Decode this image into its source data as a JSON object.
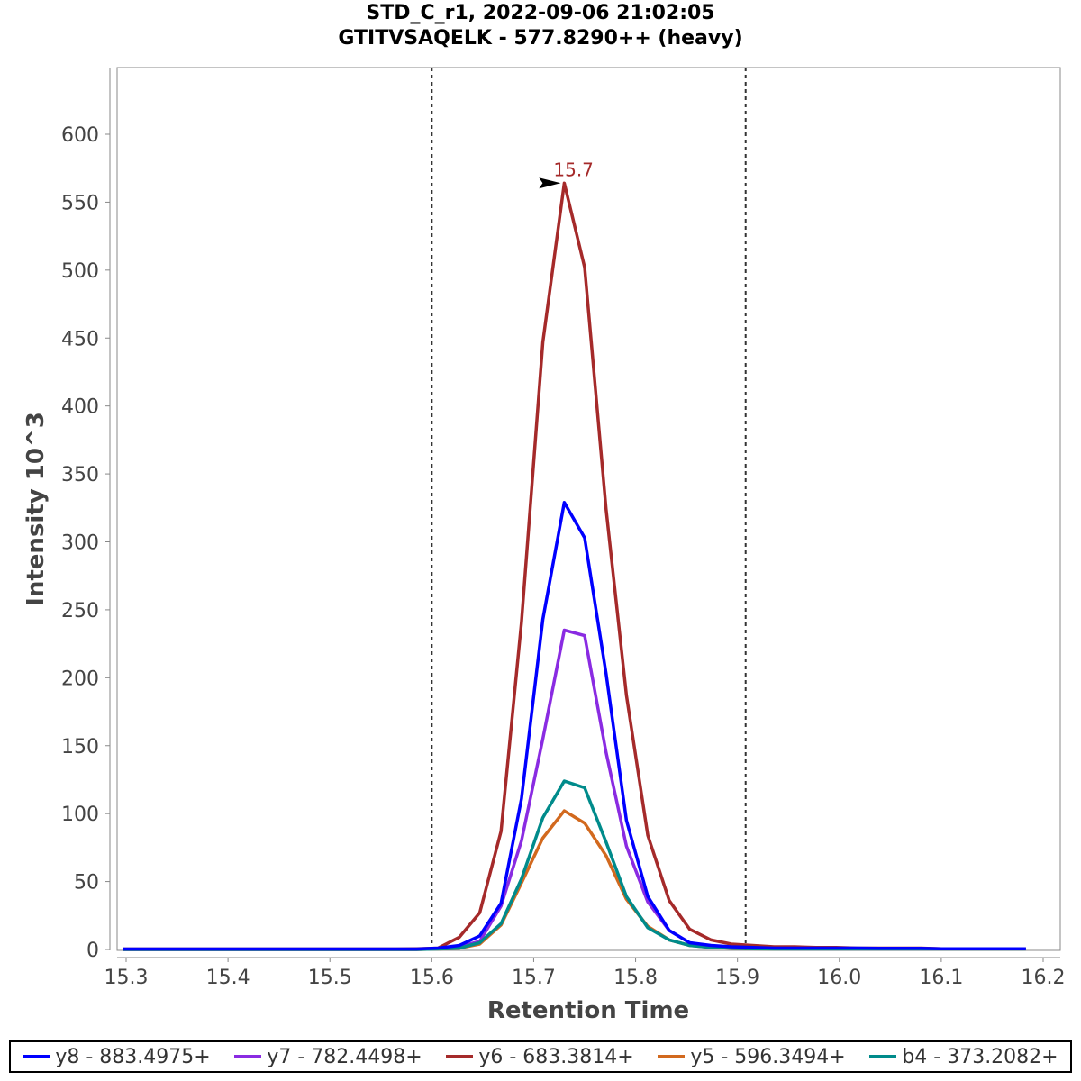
{
  "chart_data": {
    "type": "line",
    "title": "STD_C_r1, 2022-09-06 21:02:05",
    "subtitle": "GTITVSAQELK - 577.8290++ (heavy)",
    "xlabel": "Retention Time",
    "ylabel": "Intensity 10^3",
    "xlim": [
      15.29,
      16.21
    ],
    "ylim": [
      0,
      650
    ],
    "xticks": [
      "15.3",
      "15.4",
      "15.5",
      "15.6",
      "15.7",
      "15.8",
      "15.9",
      "16.0",
      "16.1",
      "16.2"
    ],
    "yticks": [
      "0",
      "50",
      "100",
      "150",
      "200",
      "250",
      "300",
      "350",
      "400",
      "450",
      "500",
      "550",
      "600"
    ],
    "integration_bounds": [
      15.6,
      15.908
    ],
    "peak_annotation": {
      "x": 15.73,
      "y": 564,
      "label": "15.7"
    },
    "legend_placement": "bottom",
    "x": [
      15.297,
      15.318,
      15.338,
      15.359,
      15.379,
      15.4,
      15.421,
      15.441,
      15.462,
      15.482,
      15.503,
      15.524,
      15.544,
      15.565,
      15.585,
      15.606,
      15.627,
      15.647,
      15.668,
      15.688,
      15.709,
      15.73,
      15.75,
      15.771,
      15.791,
      15.812,
      15.833,
      15.853,
      15.874,
      15.894,
      15.915,
      15.936,
      15.956,
      15.977,
      15.997,
      16.018,
      16.039,
      16.059,
      16.08,
      16.1,
      16.121,
      16.142,
      16.162,
      16.183
    ],
    "series": [
      {
        "name": "y6 - 683.3814+",
        "color": "#a52a2a",
        "values": [
          0.3,
          0.3,
          0.3,
          0.3,
          0.3,
          0.3,
          0.3,
          0.3,
          0.3,
          0.3,
          0.3,
          0.3,
          0.3,
          0.3,
          0.5,
          1,
          9,
          27,
          87,
          241,
          447,
          564,
          502,
          324,
          187,
          84,
          36,
          15,
          7,
          4,
          3,
          2,
          2,
          1.5,
          1.5,
          1,
          1,
          1,
          1,
          0.5,
          0.5,
          0.5,
          0.5,
          0.5
        ]
      },
      {
        "name": "y7 - 782.4498+",
        "color": "#8a2be2",
        "values": [
          0,
          0,
          0,
          0,
          0,
          0,
          0,
          0,
          0,
          0,
          0,
          0,
          0,
          0,
          0,
          0.5,
          2,
          6,
          32,
          80,
          155,
          235,
          231,
          145,
          76,
          35,
          14,
          5,
          2,
          1,
          0.5,
          0.5,
          0.3,
          0.3,
          0.3,
          0.3,
          0.3,
          0.3,
          0.3,
          0.3,
          0.3,
          0.3,
          0.3,
          0.3
        ]
      },
      {
        "name": "y5 - 596.3494+",
        "color": "#d2691e",
        "values": [
          0,
          0,
          0,
          0,
          0,
          0,
          0,
          0,
          0,
          0,
          0,
          0,
          0,
          0,
          0,
          0.3,
          1,
          4,
          18,
          49,
          82,
          102,
          93,
          69,
          37,
          17,
          7,
          3,
          1.5,
          1,
          0.5,
          0.3,
          0.3,
          0.3,
          0.3,
          0.3,
          0.3,
          0.3,
          0.3,
          0.3,
          0.3,
          0.3,
          0.3,
          0.3
        ]
      },
      {
        "name": "b4 - 373.2082+",
        "color": "#008b8b",
        "values": [
          0,
          0,
          0,
          0,
          0,
          0,
          0,
          0,
          0,
          0,
          0,
          0,
          0,
          0,
          0,
          0.3,
          1,
          5,
          19,
          52,
          97,
          124,
          119,
          79,
          39,
          16,
          7,
          3,
          1.5,
          1,
          0.5,
          0.3,
          0.3,
          0.3,
          0.3,
          0.3,
          0.3,
          0.3,
          0.3,
          0.3,
          0.3,
          0.3,
          0.3,
          0.3
        ]
      },
      {
        "name": "y8 - 883.4975+",
        "color": "#0000ff",
        "values": [
          0.3,
          0.3,
          0.3,
          0.3,
          0.3,
          0.3,
          0.3,
          0.3,
          0.3,
          0.3,
          0.3,
          0.3,
          0.3,
          0.3,
          0.3,
          1,
          3,
          10,
          34,
          111,
          243,
          329,
          303,
          203,
          95,
          39,
          14,
          5,
          3,
          2,
          1.5,
          1,
          1,
          1,
          1,
          1,
          0.8,
          0.8,
          0.8,
          0.5,
          0.5,
          0.5,
          0.5,
          0.5
        ]
      }
    ],
    "legend": [
      {
        "name": "y8 - 883.4975+",
        "color": "#0000ff"
      },
      {
        "name": "y7 - 782.4498+",
        "color": "#8a2be2"
      },
      {
        "name": "y6 - 683.3814+",
        "color": "#a52a2a"
      },
      {
        "name": "y5 - 596.3494+",
        "color": "#d2691e"
      },
      {
        "name": "b4 - 373.2082+",
        "color": "#008b8b"
      }
    ]
  }
}
